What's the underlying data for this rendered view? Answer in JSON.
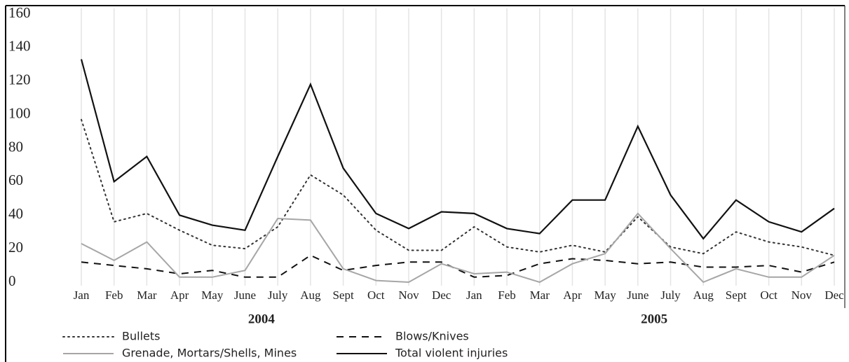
{
  "chart_data": {
    "type": "line",
    "categories": [
      "Jan",
      "Feb",
      "Mar",
      "Apr",
      "May",
      "June",
      "July",
      "Aug",
      "Sept",
      "Oct",
      "Nov",
      "Dec",
      "Jan",
      "Feb",
      "Mar",
      "Apr",
      "May",
      "June",
      "July",
      "Aug",
      "Sept",
      "Oct",
      "Nov",
      "Dec"
    ],
    "category_groups": [
      "2004",
      "2005"
    ],
    "series": [
      {
        "name": "Bullets",
        "color": "#333333",
        "dash": "dotted",
        "values": [
          97,
          36,
          41,
          31,
          22,
          20,
          33,
          64,
          52,
          31,
          19,
          19,
          33,
          21,
          18,
          22,
          18,
          39,
          21,
          17,
          30,
          24,
          21,
          16
        ]
      },
      {
        "name": "Blows/Knives",
        "color": "#111111",
        "dash": "dashed",
        "values": [
          12,
          10,
          8,
          5,
          7,
          3,
          3,
          16,
          7,
          10,
          12,
          12,
          3,
          4,
          11,
          14,
          13,
          11,
          12,
          9,
          9,
          10,
          6,
          12
        ]
      },
      {
        "name": "Grenade, Mortars/Shells, Mines",
        "color": "#a6a6a6",
        "dash": "solid",
        "values": [
          23,
          13,
          24,
          3,
          3,
          7,
          38,
          37,
          8,
          1,
          0,
          11,
          5,
          6,
          0,
          11,
          17,
          41,
          20,
          0,
          8,
          3,
          3,
          16
        ]
      },
      {
        "name": "Total violent injuries",
        "color": "#111111",
        "dash": "solid",
        "values": [
          133,
          60,
          75,
          40,
          34,
          31,
          75,
          118,
          68,
          41,
          32,
          42,
          41,
          32,
          29,
          49,
          49,
          93,
          52,
          26,
          49,
          36,
          30,
          44
        ]
      }
    ],
    "ylim": [
      0,
      160
    ],
    "yticks": [
      0,
      20,
      40,
      60,
      80,
      100,
      120,
      140,
      160
    ],
    "xgrid": true
  }
}
